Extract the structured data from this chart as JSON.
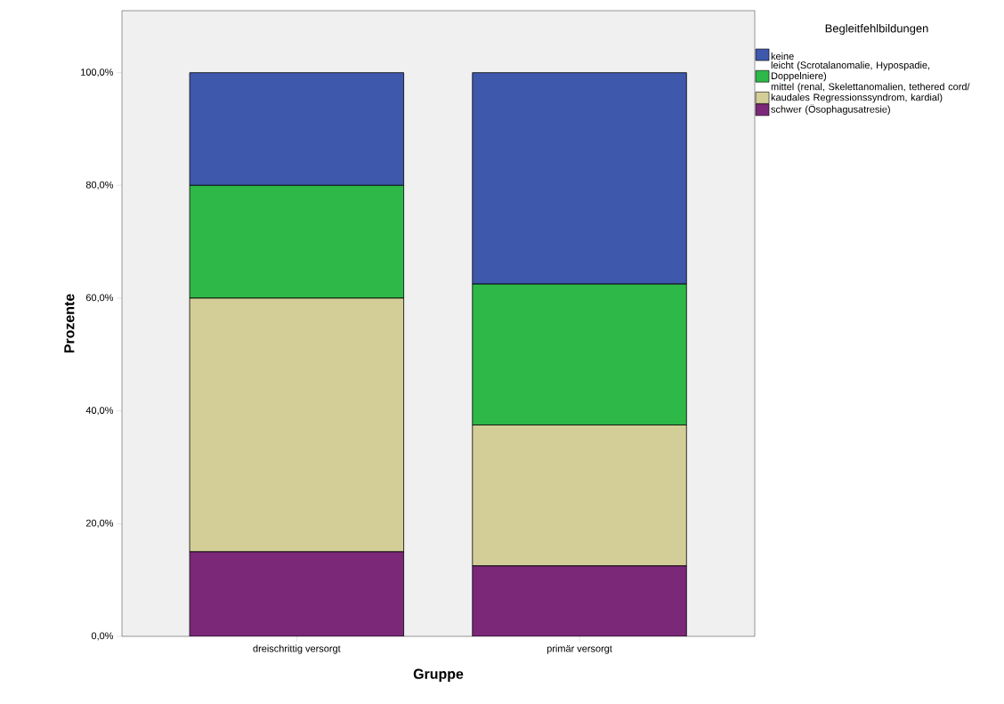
{
  "chart_data": {
    "type": "bar",
    "stacked": true,
    "xlabel": "Gruppe",
    "ylabel": "Prozente",
    "legend_title": "Begleitfehlbildungen",
    "legend": "right",
    "grid": false,
    "categories": [
      "dreischrittig versorgt",
      "primär versorgt"
    ],
    "series": [
      {
        "name": "schwer (Ösophagusatresie)",
        "color": "#7b2879",
        "values": [
          15,
          12.5
        ]
      },
      {
        "name": "mittel (renal, Skelettanomalien, tethered cord/ kaudales Regressionssyndrom, kardial)",
        "color": "#d3ce97",
        "values": [
          45,
          25
        ]
      },
      {
        "name": "leicht (Scrotalanomalie, Hypospadie, Doppelniere)",
        "color": "#2eb848",
        "values": [
          20,
          25
        ]
      },
      {
        "name": "keine",
        "color": "#3e58ac",
        "values": [
          20,
          37.5
        ]
      }
    ],
    "ylim": [
      0,
      111
    ],
    "yticks": [
      {
        "value": 0,
        "label": "0,0%"
      },
      {
        "value": 20,
        "label": "20,0%"
      },
      {
        "value": 40,
        "label": "40,0%"
      },
      {
        "value": 60,
        "label": "60,0%"
      },
      {
        "value": 80,
        "label": "80,0%"
      },
      {
        "value": 100,
        "label": "100,0%"
      }
    ]
  }
}
